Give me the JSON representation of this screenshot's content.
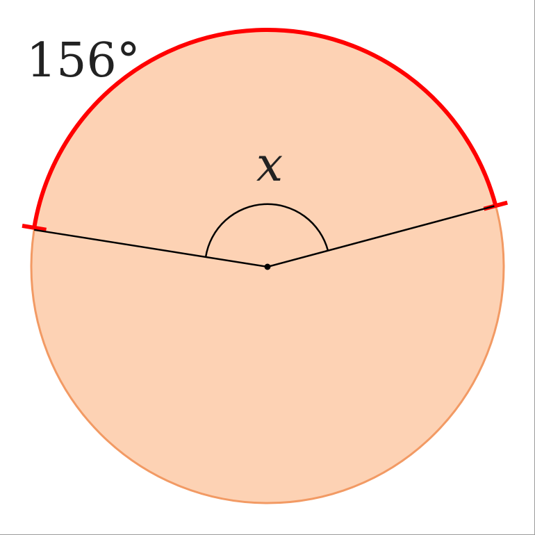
{
  "diagram": {
    "arc_label": "156°",
    "angle_label": "x",
    "colors": {
      "disk_fill": "#fdd2b4",
      "disk_stroke": "#f29a64",
      "arc": "#ff0000",
      "lines": "#000000"
    }
  }
}
